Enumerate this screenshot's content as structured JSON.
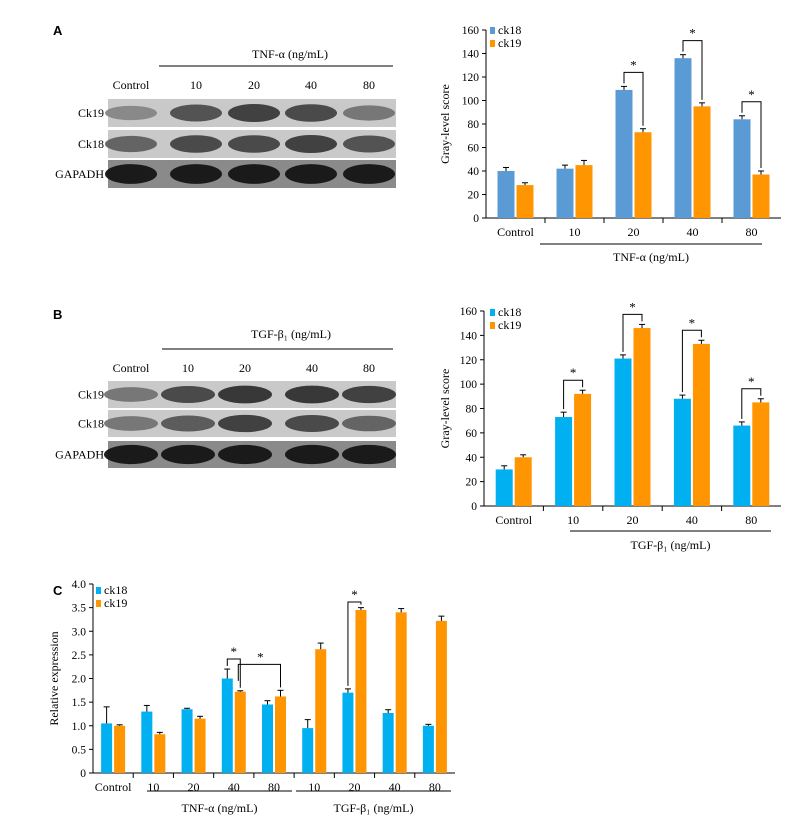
{
  "panels": {
    "A": {
      "letter": "A",
      "blot": {
        "group_label": "TNF-α (ng/mL)",
        "lane_labels": [
          "Control",
          "10",
          "20",
          "40",
          "80"
        ],
        "row_labels": [
          "Ck19",
          "Ck18",
          "GAPADH"
        ],
        "intensity": [
          [
            0.35,
            0.65,
            0.75,
            0.7,
            0.45
          ],
          [
            0.55,
            0.7,
            0.7,
            0.75,
            0.65
          ],
          [
            0.95,
            0.95,
            0.95,
            0.95,
            0.95
          ]
        ]
      },
      "chart_data": {
        "type": "bar",
        "categories": [
          "Control",
          "10",
          "20",
          "40",
          "80"
        ],
        "series": [
          {
            "name": "ck18",
            "values": [
              40,
              42,
              109,
              136,
              84
            ],
            "errors": [
              3,
              3,
              3,
              3,
              3
            ]
          },
          {
            "name": "ck19",
            "values": [
              28,
              45,
              73,
              95,
              37
            ],
            "errors": [
              2,
              4,
              3,
              3,
              3
            ]
          }
        ],
        "colors": [
          "#5b9bd5",
          "#ff9500"
        ],
        "group_label": "TNF-α (ng/mL)",
        "ylabel": "Gray-level score",
        "ylim": [
          0,
          160
        ],
        "yticks": [
          0,
          20,
          40,
          60,
          80,
          100,
          120,
          140,
          160
        ],
        "significance": [
          {
            "category": "20",
            "label": "*"
          },
          {
            "category": "40",
            "label": "*"
          },
          {
            "category": "80",
            "label": "*"
          }
        ],
        "legend": "top-left"
      }
    },
    "B": {
      "letter": "B",
      "blot": {
        "group_label": "TGF-β₁ (ng/mL)",
        "lane_labels": [
          "Control",
          "10",
          "20",
          "40",
          "80"
        ],
        "row_labels": [
          "Ck19",
          "Ck18",
          "GAPADH"
        ],
        "intensity": [
          [
            0.45,
            0.7,
            0.8,
            0.8,
            0.75
          ],
          [
            0.45,
            0.6,
            0.75,
            0.7,
            0.55
          ],
          [
            0.95,
            0.95,
            0.95,
            0.95,
            0.95
          ]
        ]
      },
      "chart_data": {
        "type": "bar",
        "categories": [
          "Control",
          "10",
          "20",
          "40",
          "80"
        ],
        "series": [
          {
            "name": "ck18",
            "values": [
              30,
              73,
              121,
              88,
              66
            ],
            "errors": [
              3,
              4,
              3,
              3,
              3
            ]
          },
          {
            "name": "ck19",
            "values": [
              40,
              92,
              146,
              133,
              85
            ],
            "errors": [
              2,
              3,
              3,
              3,
              3
            ]
          }
        ],
        "colors": [
          "#00b0f0",
          "#ff9500"
        ],
        "group_label": "TGF-β₁ (ng/mL)",
        "ylabel": "Gray-level score",
        "ylim": [
          0,
          160
        ],
        "yticks": [
          0,
          20,
          40,
          60,
          80,
          100,
          120,
          140,
          160
        ],
        "significance": [
          {
            "category": "10",
            "label": "*"
          },
          {
            "category": "20",
            "label": "*"
          },
          {
            "category": "40",
            "label": "*"
          },
          {
            "category": "80",
            "label": "*"
          }
        ],
        "legend": "top-left"
      }
    },
    "C": {
      "letter": "C",
      "chart_data": {
        "type": "bar",
        "categories": [
          "Control",
          "10",
          "20",
          "40",
          "80",
          "10",
          "20",
          "40",
          "80"
        ],
        "series": [
          {
            "name": "ck18",
            "values": [
              1.05,
              1.3,
              1.35,
              2.0,
              1.45,
              0.95,
              1.7,
              1.27,
              1.0
            ],
            "errors": [
              0.35,
              0.13,
              0.02,
              0.2,
              0.08,
              0.18,
              0.08,
              0.07,
              0.03
            ]
          },
          {
            "name": "ck19",
            "values": [
              1.0,
              0.82,
              1.15,
              1.72,
              1.62,
              2.62,
              3.45,
              3.4,
              3.22
            ],
            "errors": [
              0.02,
              0.04,
              0.05,
              0.02,
              0.13,
              0.13,
              0.05,
              0.08,
              0.1
            ]
          }
        ],
        "colors": [
          "#00b0f0",
          "#ff9500"
        ],
        "group_labels": [
          "TNF-α (ng/mL)",
          "TGF-β₁ (ng/mL)"
        ],
        "ylabel": "Relative expression",
        "ylim": [
          0,
          4.0
        ],
        "yticks": [
          "0",
          "0.5",
          "1.0",
          "1.5",
          "2.0",
          "2.5",
          "3.0",
          "3.5",
          "4.0"
        ],
        "significance": [
          {
            "label": "*"
          },
          {
            "label": "*"
          },
          {
            "label": "*"
          }
        ],
        "legend": "top-left"
      }
    }
  }
}
